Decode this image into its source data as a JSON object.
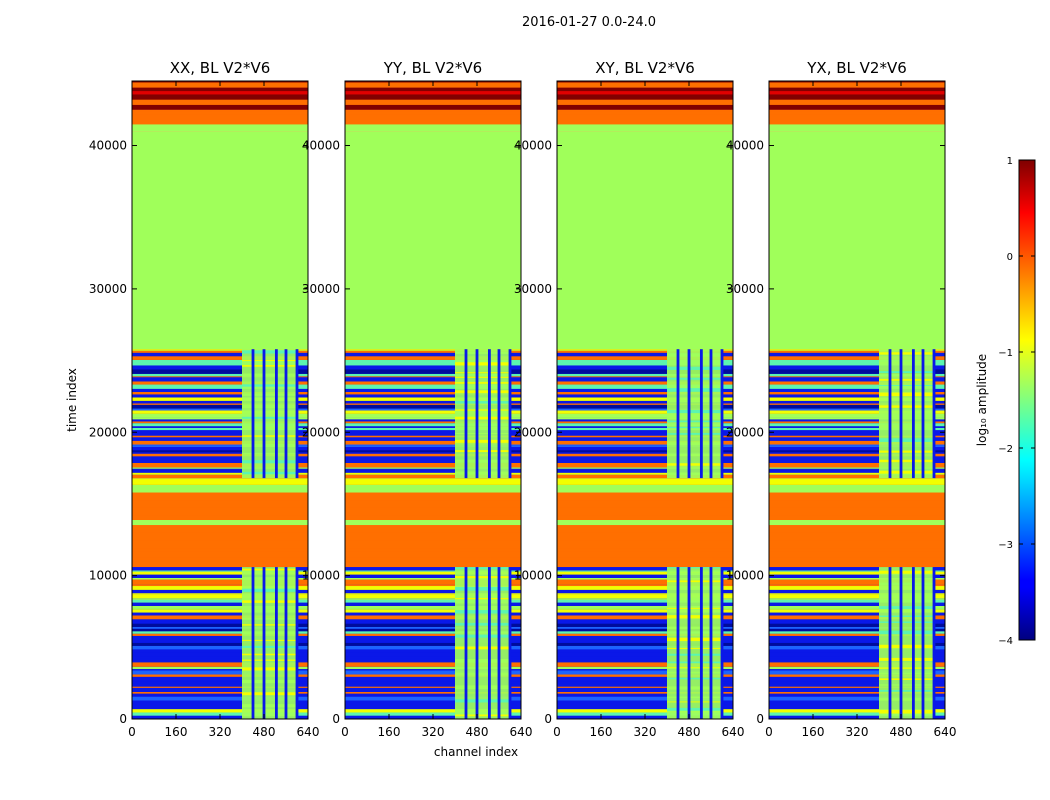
{
  "figure": {
    "suptitle": "2016-01-27 0.0-24.0",
    "xlabel": "channel index",
    "ylabel": "time index",
    "colorbar_label": "log₁₀ amplitude",
    "colormap": "jet"
  },
  "chart_data": [
    {
      "type": "heatmap",
      "title": "XX, BL V2*V6",
      "xlim": [
        0,
        640
      ],
      "ylim": [
        0,
        44500
      ]
    },
    {
      "type": "heatmap",
      "title": "YY, BL V2*V6",
      "xlim": [
        0,
        640
      ],
      "ylim": [
        0,
        44500
      ]
    },
    {
      "type": "heatmap",
      "title": "XY, BL V2*V6",
      "xlim": [
        0,
        640
      ],
      "ylim": [
        0,
        44500
      ]
    },
    {
      "type": "heatmap",
      "title": "YX, BL V2*V6",
      "xlim": [
        0,
        640
      ],
      "ylim": [
        0,
        44500
      ]
    }
  ],
  "axes": {
    "xticks": [
      0,
      160,
      320,
      480,
      640
    ],
    "xtick_labels": [
      "0",
      "160",
      "320",
      "480",
      "640"
    ],
    "yticks": [
      0,
      10000,
      20000,
      30000,
      40000
    ],
    "ytick_labels": [
      "0",
      "10000",
      "20000",
      "30000",
      "40000"
    ]
  },
  "colorbar": {
    "range": [
      -4,
      1
    ],
    "ticks": [
      1,
      0,
      -1,
      -2,
      -3,
      -4
    ],
    "tick_labels": [
      "1",
      "0",
      "−1",
      "−2",
      "−3",
      "−4"
    ]
  },
  "bands": {
    "time_segments": [
      {
        "from": 0,
        "to": 10600,
        "kind": "data"
      },
      {
        "from": 10600,
        "to": 16800,
        "kind": "flag_orange"
      },
      {
        "from": 16800,
        "to": 25800,
        "kind": "data"
      },
      {
        "from": 25800,
        "to": 41000,
        "kind": "flag_green"
      },
      {
        "from": 41000,
        "to": 42500,
        "kind": "flag_orange"
      },
      {
        "from": 42500,
        "to": 44500,
        "kind": "flag_top"
      }
    ],
    "rfi_channel_range": [
      400,
      600
    ],
    "rfi_channel_lines": [
      440,
      480,
      525,
      560,
      600
    ]
  },
  "colors": {
    "noise_blue": "#0a18e8",
    "deep_blue": "#000c9c",
    "mid_blue": "#1c64ff",
    "orange": "#ff6f00",
    "light_green": "#a0ff5a",
    "yellow": "#f2ff00",
    "dark_red": "#800000",
    "red": "#e00000",
    "cyan_green": "#5cf5b0"
  }
}
